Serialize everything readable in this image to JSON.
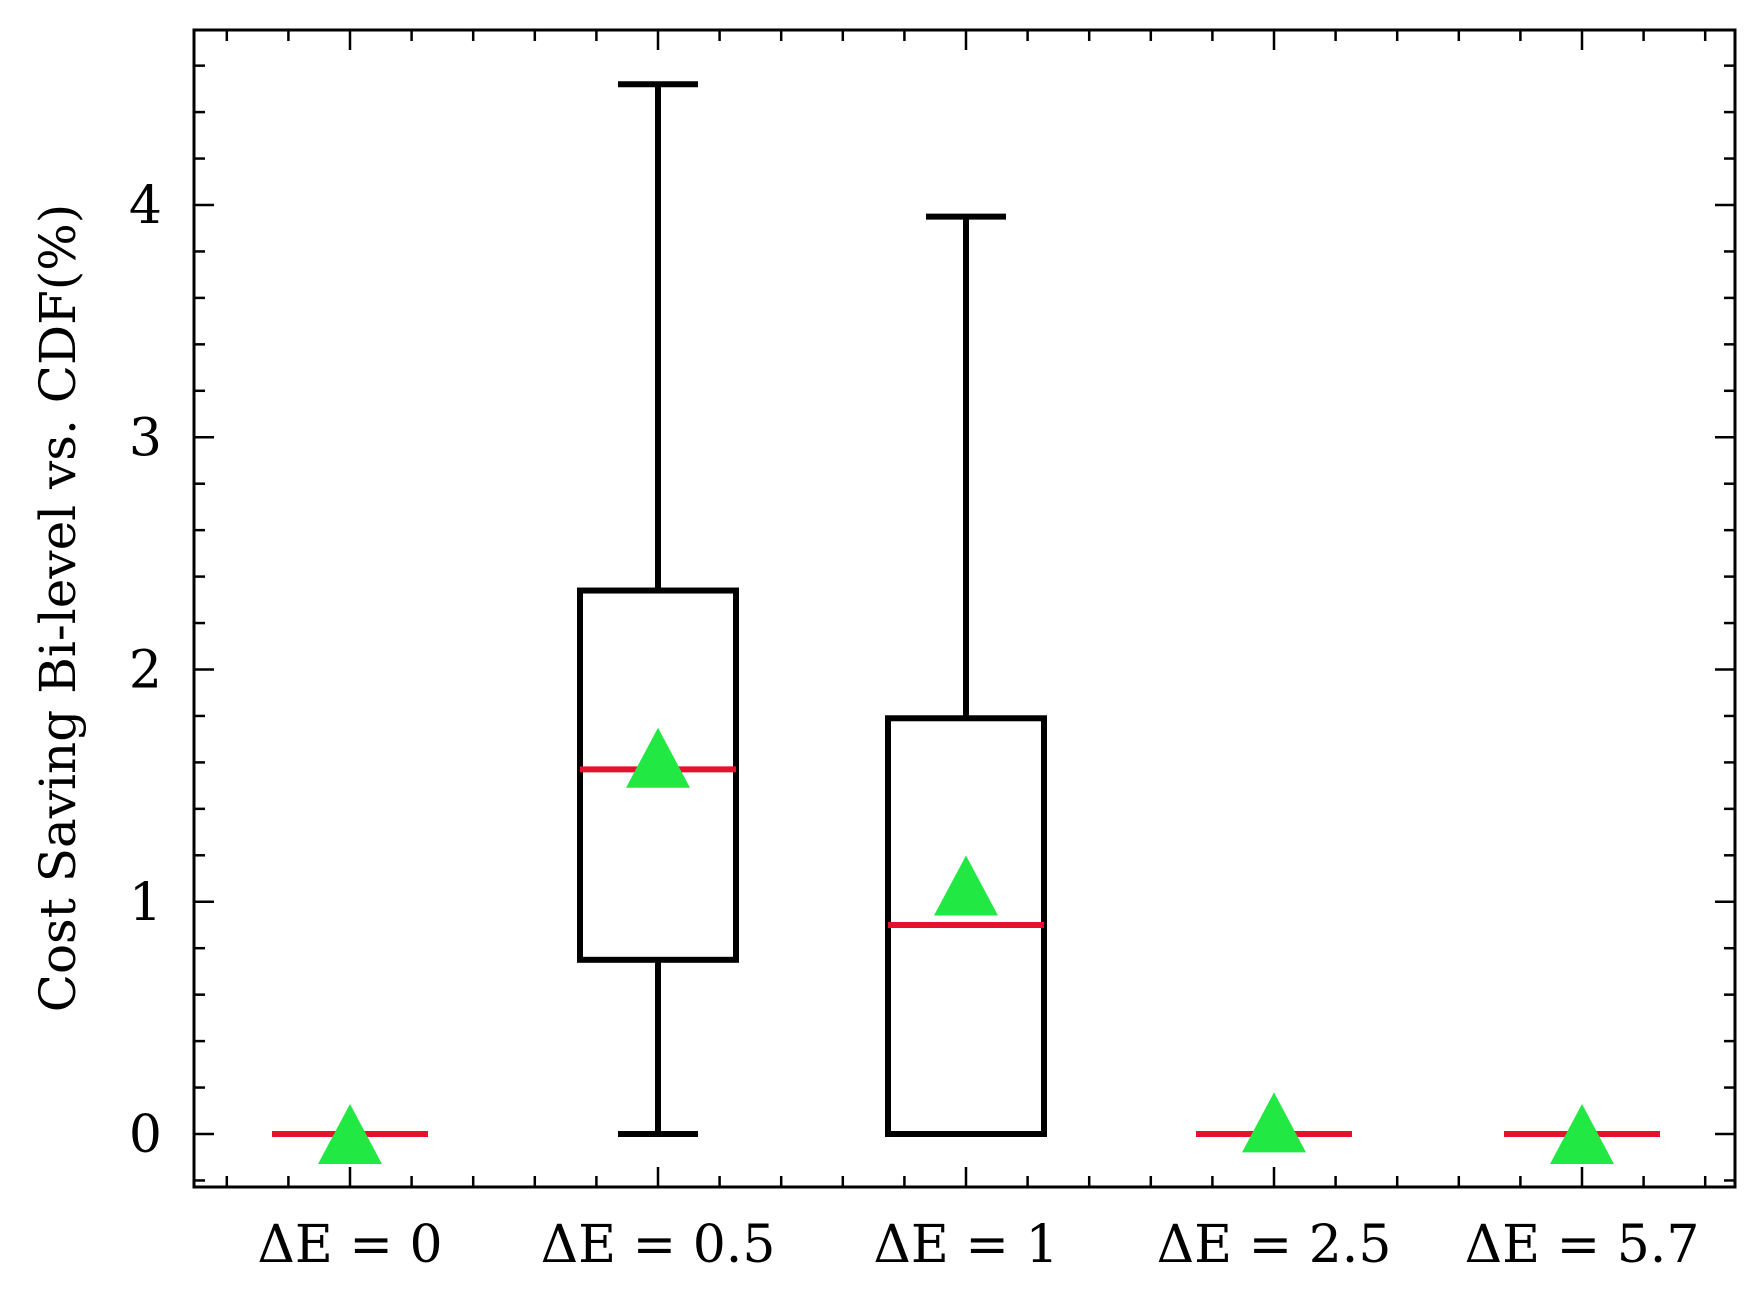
{
  "chart_data": {
    "type": "box",
    "title": "",
    "xlabel": "",
    "ylabel": "Cost Saving Bi-level vs. CDF(%)",
    "ylim": [
      -0.22,
      4.72
    ],
    "yticks": [
      0,
      1,
      2,
      3,
      4
    ],
    "categories": [
      "ΔE = 0",
      "ΔE = 0.5",
      "ΔE = 1",
      "ΔE = 2.5",
      "ΔE = 5.7"
    ],
    "boxes": [
      {
        "whisker_low": 0,
        "q1": 0,
        "median": 0,
        "q3": 0,
        "whisker_high": 0,
        "mean": 0.0
      },
      {
        "whisker_low": 0,
        "q1": 0.75,
        "median": 1.57,
        "q3": 2.34,
        "whisker_high": 4.52,
        "mean": 1.62
      },
      {
        "whisker_low": 0,
        "q1": 0.0,
        "median": 0.9,
        "q3": 1.79,
        "whisker_high": 3.95,
        "mean": 1.07
      },
      {
        "whisker_low": 0,
        "q1": 0,
        "median": 0,
        "q3": 0,
        "whisker_high": 0,
        "mean": 0.05
      },
      {
        "whisker_low": 0,
        "q1": 0,
        "median": 0,
        "q3": 0,
        "whisker_high": 0,
        "mean": 0.0
      }
    ],
    "grid": false,
    "colors": {
      "box": "#000000",
      "median": "#e8112d",
      "mean_marker": "#22e844"
    }
  }
}
